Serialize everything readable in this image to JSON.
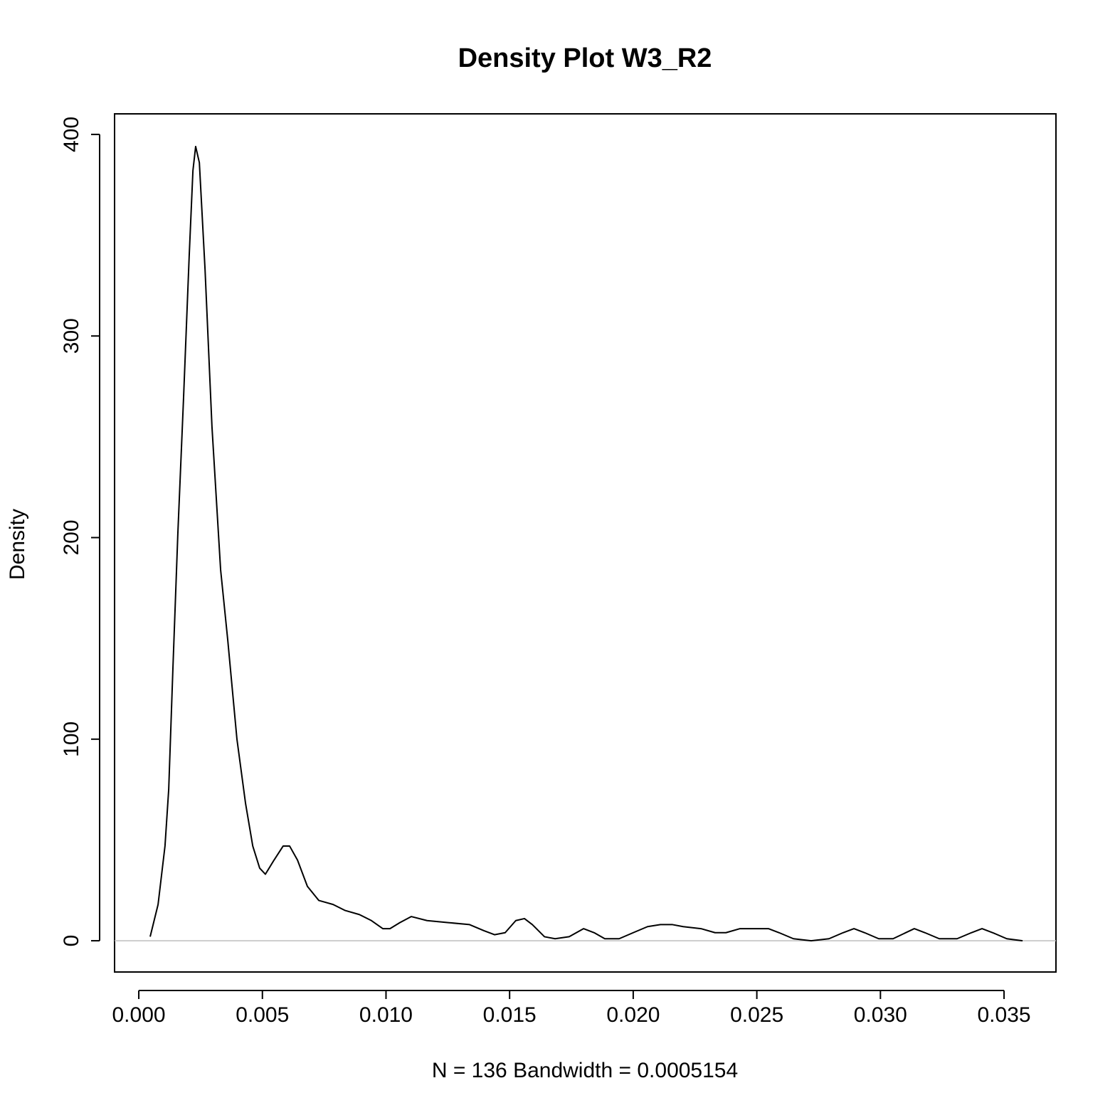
{
  "chart_data": {
    "type": "line",
    "title": "Density Plot W3_R2",
    "x_label": "N = 136   Bandwidth = 0.0005154",
    "y_label": "Density",
    "x": [
      0.00046,
      0.00078,
      0.00106,
      0.00121,
      0.00138,
      0.00158,
      0.00181,
      0.00204,
      0.00219,
      0.0023,
      0.00245,
      0.00268,
      0.00296,
      0.00331,
      0.0036,
      0.00397,
      0.00432,
      0.00461,
      0.00489,
      0.00512,
      0.00547,
      0.00584,
      0.0061,
      0.00642,
      0.00682,
      0.00728,
      0.00786,
      0.00835,
      0.00892,
      0.00941,
      0.00987,
      0.01016,
      0.01056,
      0.01102,
      0.01166,
      0.01252,
      0.01338,
      0.01396,
      0.01439,
      0.01482,
      0.01525,
      0.0156,
      0.01592,
      0.01641,
      0.01684,
      0.01741,
      0.01799,
      0.01842,
      0.01885,
      0.01943,
      0.02,
      0.02058,
      0.0211,
      0.02159,
      0.02202,
      0.02274,
      0.02331,
      0.02375,
      0.02432,
      0.0249,
      0.02547,
      0.0259,
      0.02648,
      0.0272,
      0.02792,
      0.02849,
      0.02893,
      0.02936,
      0.02993,
      0.03051,
      0.03137,
      0.0318,
      0.03238,
      0.0331,
      0.03368,
      0.03411,
      0.03454,
      0.03511,
      0.03575
    ],
    "values": [
      2,
      18,
      47,
      75,
      135,
      202,
      269,
      340,
      382,
      394,
      386,
      333,
      255,
      184,
      149,
      100,
      68,
      47,
      36,
      33,
      40,
      47,
      47,
      40,
      27,
      20,
      18,
      15,
      13,
      10,
      6,
      6,
      9,
      12,
      10,
      9,
      8,
      5,
      3,
      4,
      10,
      11,
      8,
      2,
      1,
      2,
      6,
      4,
      1,
      1,
      4,
      7,
      8,
      8,
      7,
      6,
      4,
      4,
      6,
      6,
      6,
      4,
      1,
      0,
      1,
      4,
      6,
      4,
      1,
      1,
      6,
      4,
      1,
      1,
      4,
      6,
      4,
      1,
      0
    ],
    "color": "#000000",
    "hline": 0,
    "hline_color": "#bebebe",
    "xlim": [
      -0.00098,
      0.0371
    ],
    "ylim": [
      -15.5,
      410.2
    ],
    "xticks": [
      {
        "value": 0,
        "label": "0.000"
      },
      {
        "value": 0.005,
        "label": "0.005"
      },
      {
        "value": 0.01,
        "label": "0.010"
      },
      {
        "value": 0.015,
        "label": "0.015"
      },
      {
        "value": 0.02,
        "label": "0.020"
      },
      {
        "value": 0.025,
        "label": "0.025"
      },
      {
        "value": 0.03,
        "label": "0.030"
      },
      {
        "value": 0.035,
        "label": "0.035"
      }
    ],
    "yticks": [
      0,
      100,
      200,
      300,
      400
    ]
  }
}
